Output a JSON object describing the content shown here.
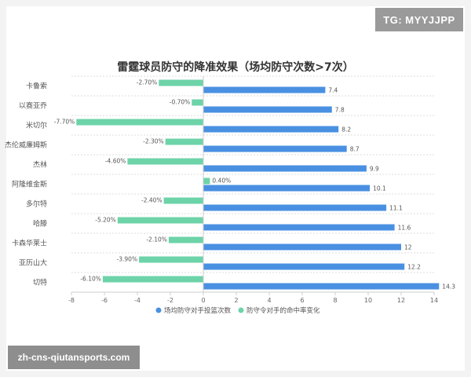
{
  "badge": "TG: MYYJJPP",
  "watermark": "zh-cns-qiutansports.com",
  "chart_data": {
    "type": "bar",
    "orientation": "horizontal",
    "title": "雷霆球员防守的降准效果（场均防守次数>7次）",
    "categories": [
      "卡鲁索",
      "以赛亚乔",
      "米切尔",
      "杰伦威廉姆斯",
      "杰林",
      "阿隆维金斯",
      "多尔特",
      "哈滕",
      "卡森华莱士",
      "亚历山大",
      "切特"
    ],
    "series": [
      {
        "name": "场均防守对手投篮次数",
        "color": "#4a90e2",
        "values": [
          7.4,
          7.8,
          8.2,
          8.7,
          9.9,
          10.1,
          11.1,
          11.6,
          12,
          12.2,
          14.3
        ],
        "labels": [
          "7.4",
          "7.8",
          "8.2",
          "8.7",
          "9.9",
          "10.1",
          "11.1",
          "11.6",
          "12",
          "12.2",
          "14.3"
        ]
      },
      {
        "name": "防守令对手的命中率变化",
        "color": "#6dd3a8",
        "values": [
          -2.7,
          -0.7,
          -7.7,
          -2.3,
          -4.6,
          0.4,
          -2.4,
          -5.2,
          -2.1,
          -3.9,
          -6.1
        ],
        "labels": [
          "-2.70%",
          "-0.70%",
          "-7.70%",
          "-2.30%",
          "-4.60%",
          "0.40%",
          "-2.40%",
          "-5.20%",
          "-2.10%",
          "-3.90%",
          "-6.10%"
        ]
      }
    ],
    "xlim": [
      -8,
      14
    ],
    "xticks": [
      "-8",
      "-6",
      "-4",
      "-2",
      "0",
      "2",
      "4",
      "6",
      "8",
      "10",
      "12",
      "14"
    ],
    "grid": true,
    "legend_position": "bottom"
  }
}
